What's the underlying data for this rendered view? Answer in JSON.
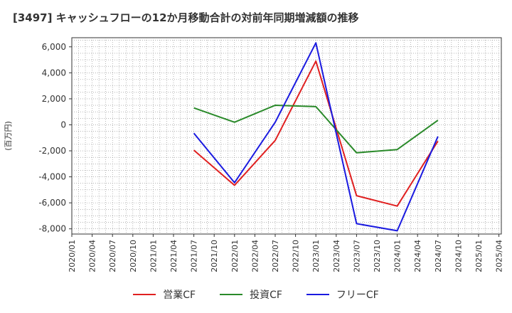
{
  "chart_data": {
    "type": "line",
    "title": "[3497]  キャッシュフローの12か月移動合計の対前年同期増減額の推移",
    "ylabel": "(百万円)",
    "xlabel": "",
    "ylim": [
      -8400,
      6700
    ],
    "yticks": [
      6000,
      4000,
      2000,
      0,
      -2000,
      -4000,
      -6000,
      -8000
    ],
    "ytick_labels": [
      "6,000",
      "4,000",
      "2,000",
      "0",
      "-2,000",
      "-4,000",
      "-6,000",
      "-8,000"
    ],
    "categories": [
      "2020/01",
      "2020/04",
      "2020/07",
      "2020/10",
      "2021/01",
      "2021/04",
      "2021/07",
      "2021/10",
      "2022/01",
      "2022/04",
      "2022/07",
      "2022/10",
      "2023/01",
      "2023/04",
      "2023/07",
      "2023/10",
      "2024/01",
      "2024/04",
      "2024/07",
      "2024/10",
      "2025/01",
      "2025/04"
    ],
    "grid": true,
    "legend_position": "bottom",
    "series": [
      {
        "name": "営業CF",
        "color": "#e02020",
        "values": [
          null,
          null,
          null,
          null,
          null,
          null,
          -1950,
          null,
          -4650,
          null,
          -1200,
          null,
          4900,
          null,
          -5450,
          null,
          -6250,
          null,
          -1250,
          null,
          null,
          null
        ]
      },
      {
        "name": "投資CF",
        "color": "#2a8a2a",
        "values": [
          null,
          null,
          null,
          null,
          null,
          null,
          1300,
          null,
          200,
          null,
          1500,
          null,
          1400,
          null,
          -2150,
          null,
          -1900,
          null,
          350,
          null,
          null,
          null
        ]
      },
      {
        "name": "フリーCF",
        "color": "#1a1ae0",
        "values": [
          null,
          null,
          null,
          null,
          null,
          null,
          -650,
          null,
          -4450,
          null,
          200,
          null,
          6300,
          null,
          -7600,
          null,
          -8150,
          null,
          -900,
          null,
          null,
          null
        ]
      }
    ]
  }
}
